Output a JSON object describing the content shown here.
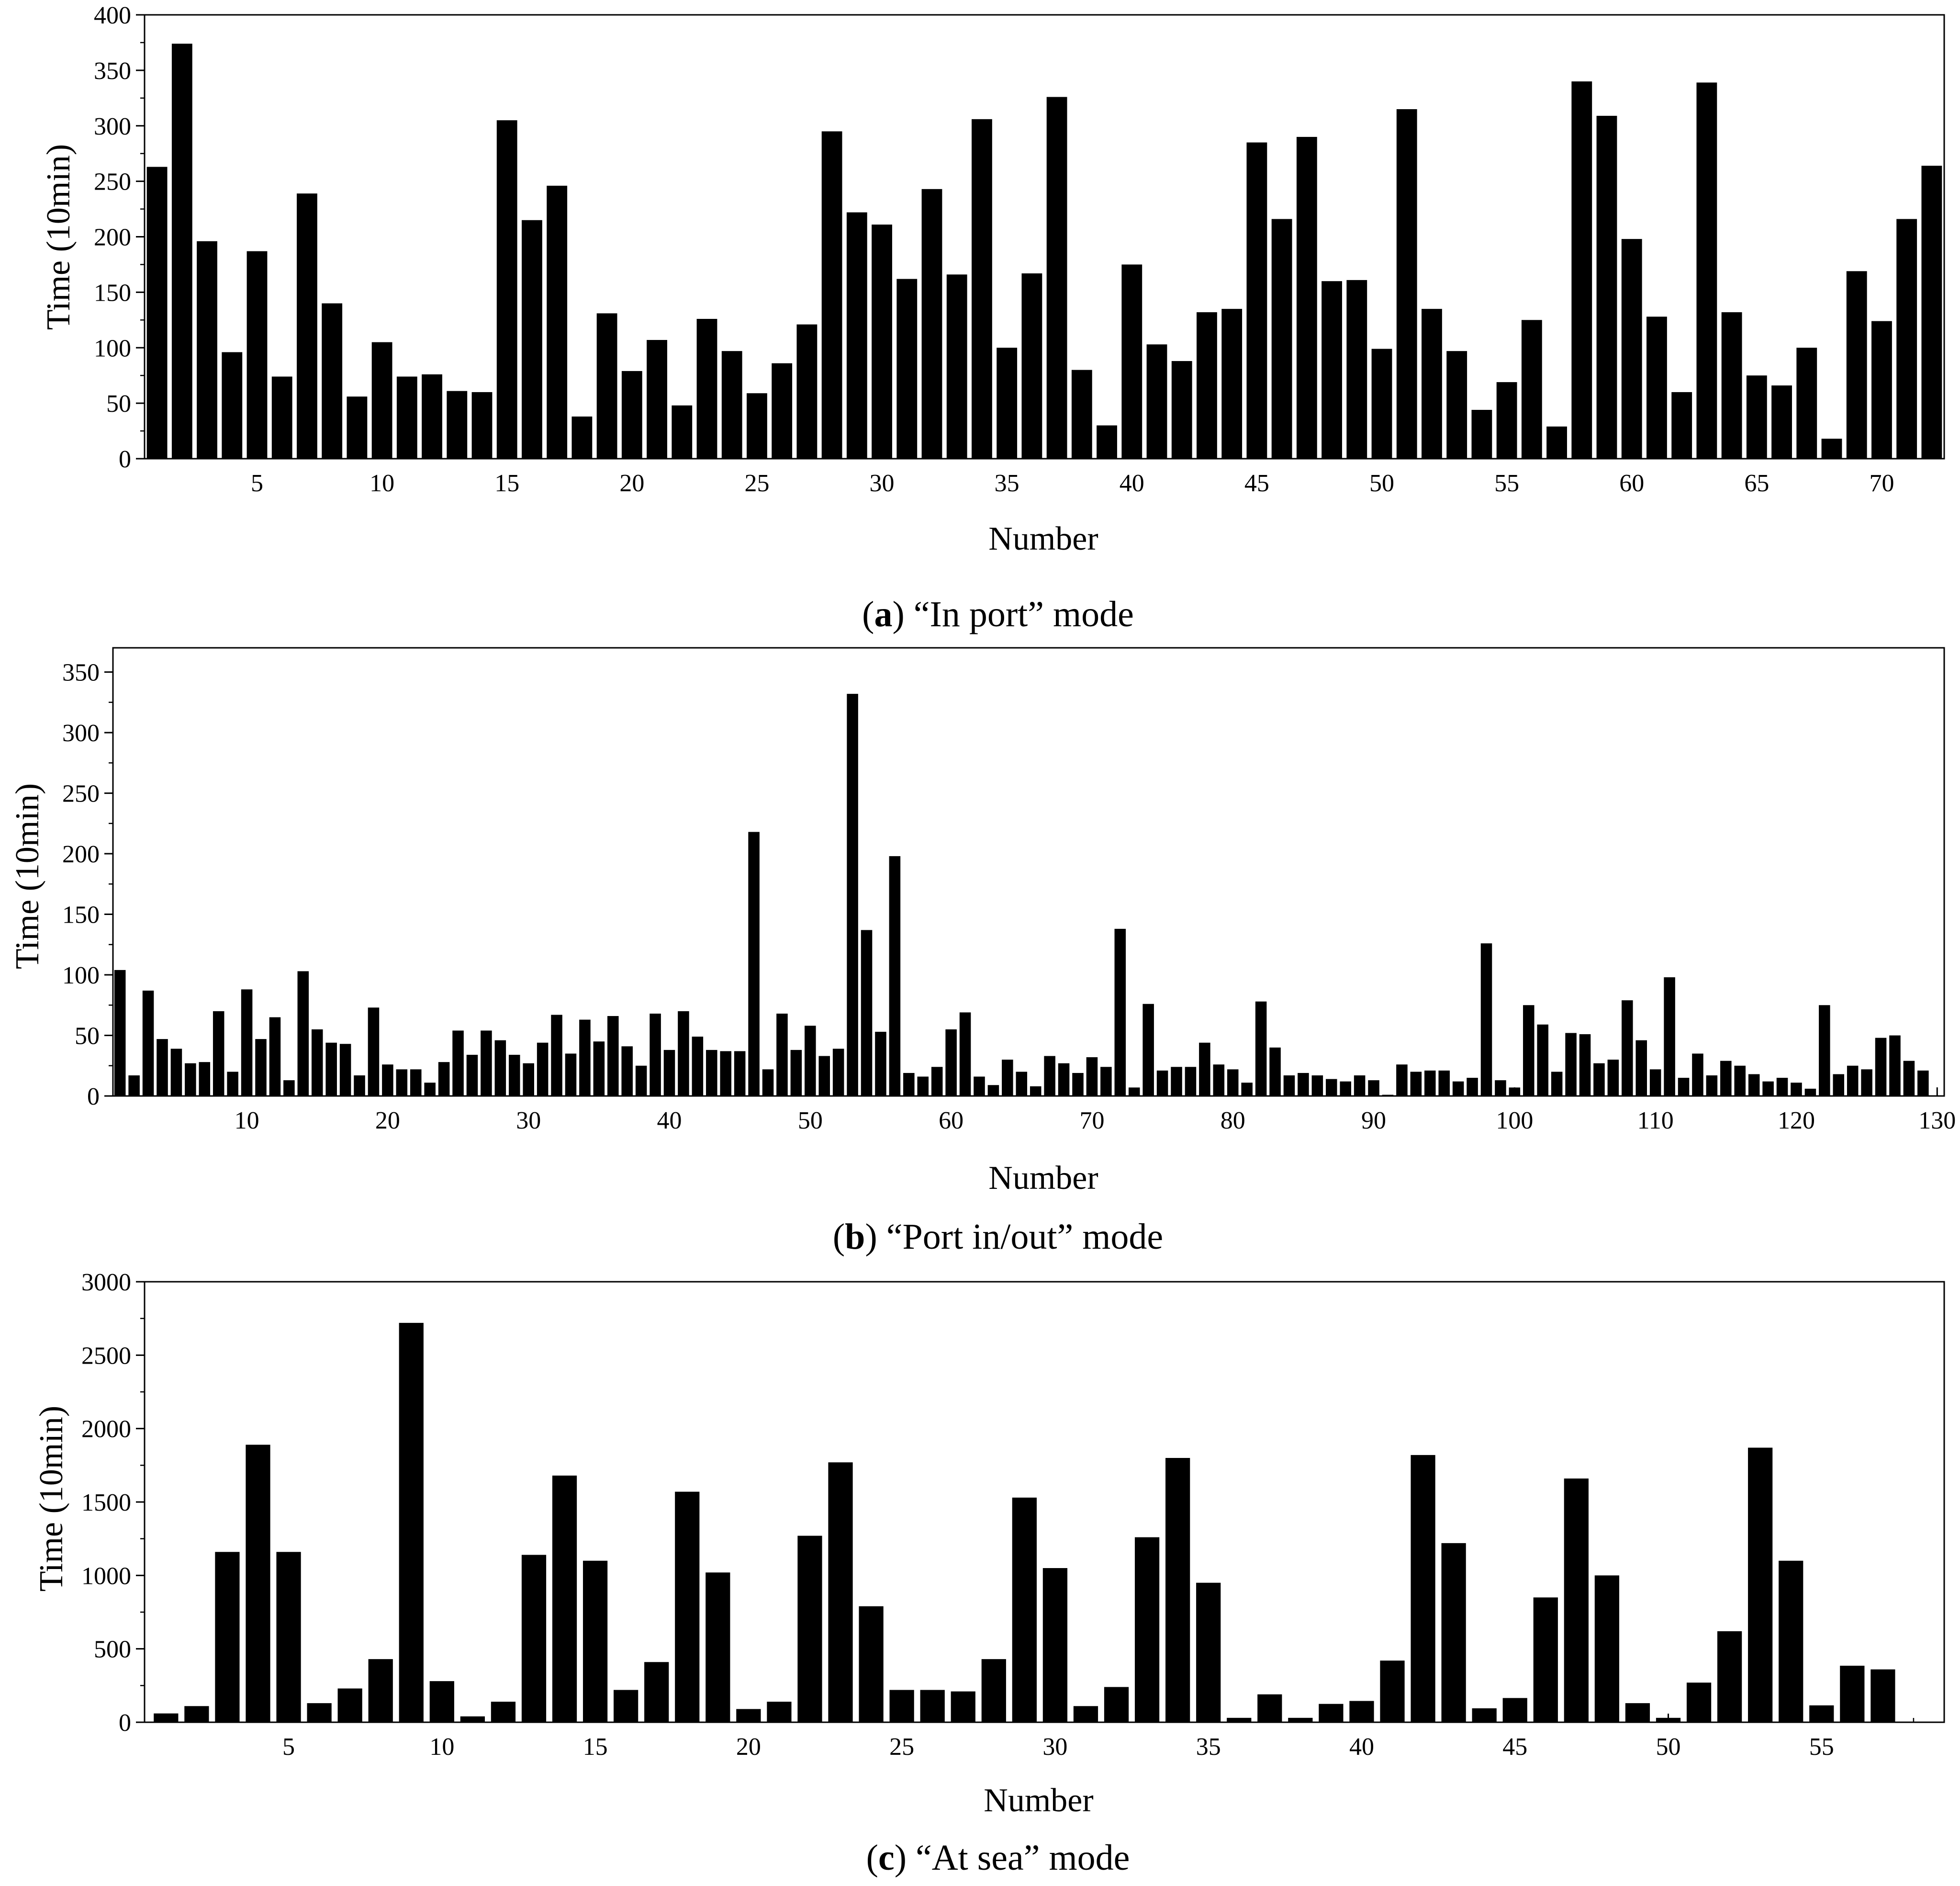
{
  "figure": {
    "bar_color": "#000000",
    "axis_color": "#000000",
    "background": "#ffffff"
  },
  "chart_data": [
    {
      "type": "bar",
      "id": "a",
      "caption_letter": "a",
      "caption_text": "“In port” mode",
      "xlabel": "Number",
      "ylabel": "Time (10min)",
      "xlim": [
        0.5,
        72.5
      ],
      "ylim": [
        0,
        400
      ],
      "x_ticks": [
        5,
        10,
        15,
        20,
        25,
        30,
        35,
        40,
        45,
        50,
        55,
        60,
        65,
        70
      ],
      "x_minor_step": 1,
      "y_ticks": [
        0,
        50,
        100,
        150,
        200,
        250,
        300,
        350,
        400
      ],
      "y_minor_step": 25,
      "values": [
        263,
        374,
        196,
        96,
        187,
        74,
        239,
        140,
        56,
        105,
        74,
        76,
        61,
        60,
        305,
        215,
        246,
        38,
        131,
        79,
        107,
        48,
        126,
        97,
        59,
        86,
        121,
        295,
        222,
        211,
        162,
        243,
        166,
        306,
        100,
        167,
        326,
        80,
        30,
        175,
        103,
        88,
        132,
        135,
        285,
        216,
        290,
        160,
        161,
        99,
        315,
        135,
        97,
        44,
        69,
        125,
        29,
        340,
        309,
        198,
        128,
        60,
        339,
        132,
        75,
        66,
        100,
        18,
        169,
        124,
        216,
        264
      ]
    },
    {
      "type": "bar",
      "id": "b",
      "caption_letter": "b",
      "caption_text": "“Port in/out” mode",
      "xlabel": "Number",
      "ylabel": "Time (10min)",
      "xlim": [
        0.5,
        130.5
      ],
      "ylim": [
        0,
        370
      ],
      "x_ticks": [
        10,
        20,
        30,
        40,
        50,
        60,
        70,
        80,
        90,
        100,
        110,
        120,
        130
      ],
      "x_minor_step": 2,
      "y_ticks": [
        0,
        50,
        100,
        150,
        200,
        250,
        300,
        350
      ],
      "y_minor_step": 25,
      "values": [
        104,
        17,
        87,
        47,
        39,
        27,
        28,
        70,
        20,
        88,
        47,
        65,
        13,
        103,
        55,
        44,
        43,
        17,
        73,
        26,
        22,
        22,
        11,
        28,
        54,
        34,
        54,
        46,
        34,
        27,
        44,
        67,
        35,
        63,
        45,
        66,
        41,
        25,
        68,
        38,
        70,
        49,
        38,
        37,
        37,
        218,
        22,
        68,
        38,
        58,
        33,
        39,
        332,
        137,
        53,
        198,
        19,
        16,
        24,
        55,
        69,
        16,
        9,
        30,
        20,
        8,
        33,
        27,
        19,
        32,
        24,
        138,
        7,
        76,
        21,
        24,
        24,
        44,
        26,
        22,
        11,
        78,
        40,
        17,
        19,
        17,
        14,
        12,
        17,
        13,
        1,
        26,
        20,
        21,
        21,
        12,
        15,
        126,
        13,
        7,
        75,
        59,
        20,
        52,
        51,
        27,
        30,
        79,
        46,
        22,
        98,
        15,
        35,
        17,
        29,
        25,
        18,
        12,
        15,
        11,
        6,
        75,
        18,
        25,
        22,
        48,
        50,
        29,
        21
      ]
    },
    {
      "type": "bar",
      "id": "c",
      "caption_letter": "c",
      "caption_text": "“At sea” mode",
      "xlabel": "Number",
      "ylabel": "Time (10min)",
      "xlim": [
        0.3,
        59
      ],
      "ylim": [
        0,
        3000
      ],
      "x_ticks": [
        5,
        10,
        15,
        20,
        25,
        30,
        35,
        40,
        45,
        50,
        55
      ],
      "x_minor_step": 1,
      "y_ticks": [
        0,
        500,
        1000,
        1500,
        2000,
        2500,
        3000
      ],
      "y_minor_step": 250,
      "values": [
        60,
        110,
        1160,
        1890,
        1160,
        130,
        230,
        430,
        2720,
        280,
        40,
        140,
        1140,
        1680,
        1100,
        220,
        410,
        1570,
        1020,
        90,
        140,
        1270,
        1770,
        790,
        220,
        220,
        210,
        430,
        1530,
        1050,
        110,
        240,
        1260,
        1800,
        950,
        30,
        190,
        30,
        125,
        145,
        420,
        1820,
        1220,
        95,
        165,
        850,
        1660,
        1000,
        130,
        30,
        270,
        620,
        1870,
        1100,
        115,
        385,
        360
      ]
    }
  ]
}
